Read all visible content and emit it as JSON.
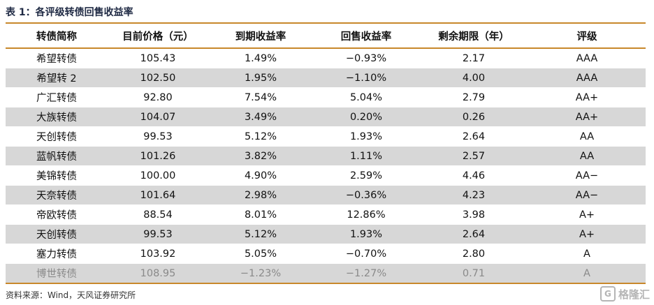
{
  "caption": "表 1：各评级转债回售收益率",
  "table": {
    "headers": [
      "转债简称",
      "目前价格（元）",
      "到期收益率",
      "回售收益率",
      "剩余期限（年）",
      "评级"
    ],
    "rows": [
      [
        "希望转债",
        "105.43",
        "1.49%",
        "−0.93%",
        "2.17",
        "AAA"
      ],
      [
        "希望转 2",
        "102.50",
        "1.95%",
        "−1.10%",
        "4.00",
        "AAA"
      ],
      [
        "广汇转债",
        "92.80",
        "7.54%",
        "5.04%",
        "2.79",
        "AA+"
      ],
      [
        "大族转债",
        "104.07",
        "3.49%",
        "0.20%",
        "0.26",
        "AA+"
      ],
      [
        "天创转债",
        "99.53",
        "5.12%",
        "1.93%",
        "2.64",
        "AA"
      ],
      [
        "蓝帆转债",
        "101.26",
        "3.82%",
        "1.11%",
        "2.57",
        "AA"
      ],
      [
        "美锦转债",
        "100.00",
        "4.90%",
        "2.59%",
        "4.46",
        "AA−"
      ],
      [
        "天奈转债",
        "101.64",
        "2.98%",
        "−0.36%",
        "4.23",
        "AA−"
      ],
      [
        "帝欧转债",
        "88.54",
        "8.01%",
        "12.86%",
        "3.98",
        "A+"
      ],
      [
        "天创转债",
        "99.53",
        "5.12%",
        "1.93%",
        "2.64",
        "A+"
      ],
      [
        "塞力转债",
        "103.92",
        "5.05%",
        "−0.70%",
        "2.80",
        "A"
      ],
      [
        "博世转债",
        "108.95",
        "−1.23%",
        "−1.27%",
        "0.71",
        "A"
      ]
    ]
  },
  "source": "资料来源：Wind，天风证券研究所",
  "watermark": {
    "icon": "G",
    "text": "格隆汇"
  },
  "colors": {
    "rule": "#c8882b",
    "stripe": "#d7d7d7",
    "muted_text": "#8a8a8a"
  }
}
